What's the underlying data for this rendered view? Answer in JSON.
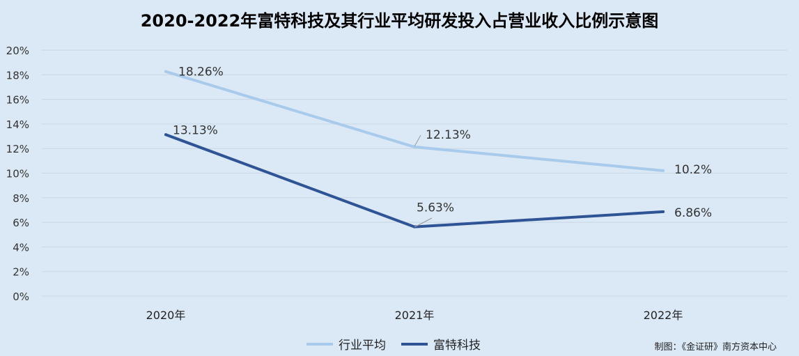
{
  "chart_data": {
    "type": "line",
    "title": "2020-2022年富特科技及其行业平均研发投入占营业收入比例示意图",
    "categories": [
      "2020年",
      "2021年",
      "2022年"
    ],
    "ylim": [
      0,
      20
    ],
    "yticks": [
      "0%",
      "2%",
      "4%",
      "6%",
      "8%",
      "10%",
      "12%",
      "14%",
      "16%",
      "18%",
      "20%"
    ],
    "grid": true,
    "legend_position": "bottom",
    "series": [
      {
        "name": "行业平均",
        "values": [
          18.26,
          12.13,
          10.2
        ],
        "labels": [
          "18.26%",
          "12.13%",
          "10.2%"
        ],
        "color": "#a9cbeb"
      },
      {
        "name": "富特科技",
        "values": [
          13.13,
          5.63,
          6.86
        ],
        "labels": [
          "13.13%",
          "5.63%",
          "6.86%"
        ],
        "color": "#2f5496"
      }
    ]
  },
  "credit": "制图：《金证研》南方资本中心"
}
